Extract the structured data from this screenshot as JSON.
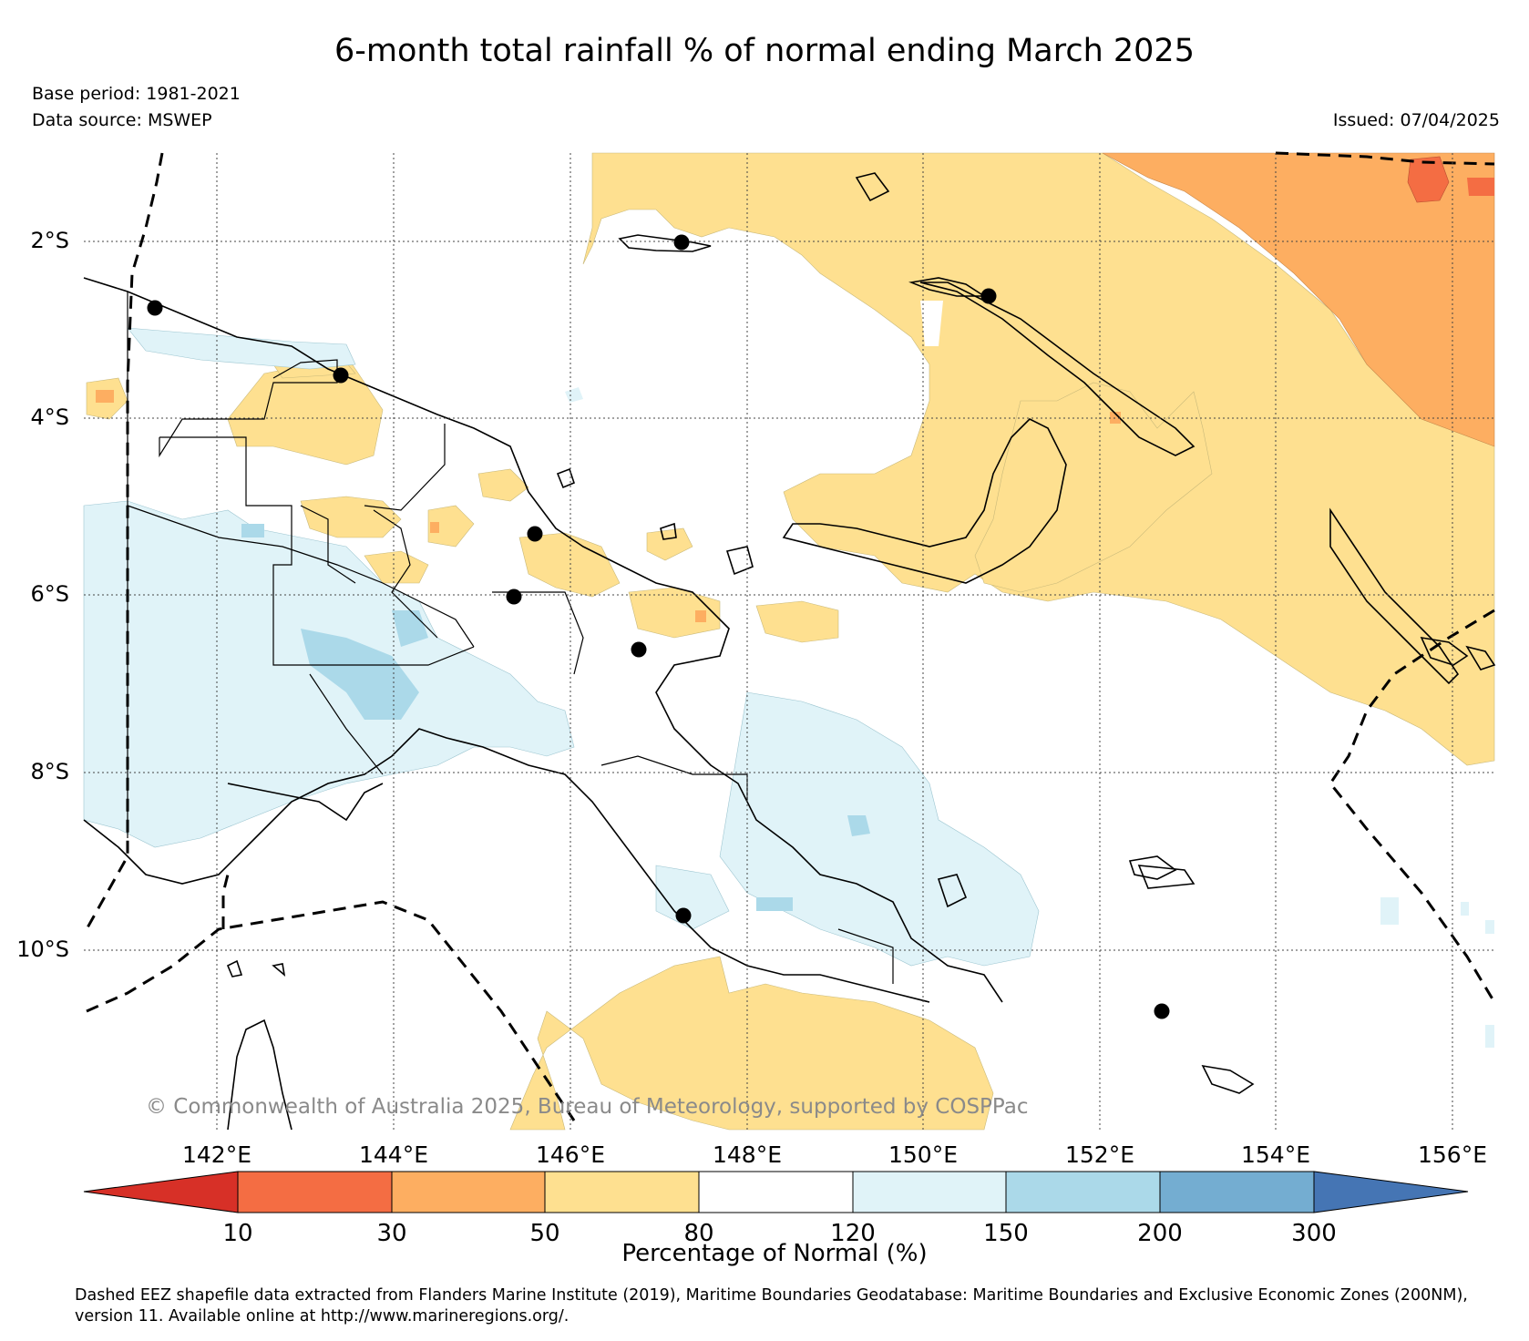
{
  "header": {
    "title": "6-month total rainfall % of normal ending March 2025",
    "base_period": "Base period: 1981-2021",
    "data_source": "Data source: MSWEP",
    "issued": "Issued: 07/04/2025"
  },
  "map": {
    "lat_labels": [
      "2°S",
      "4°S",
      "6°S",
      "8°S",
      "10°S"
    ],
    "lon_labels": [
      "142°E",
      "144°E",
      "146°E",
      "148°E",
      "150°E",
      "152°E",
      "154°E",
      "156°E"
    ],
    "copyright": "© Commonwealth of Australia 2025, Bureau of Meteorology, supported by COSPPac",
    "colors": {
      "below_10": "#d73027",
      "p10_30": "#f46d43",
      "p30_50": "#fdae61",
      "p50_80": "#fee090",
      "p80_120": "#ffffff",
      "p120_150": "#e0f3f8",
      "p150_200": "#abd9e9",
      "p200_300": "#74add1",
      "above_300": "#4575b4"
    }
  },
  "colorbar": {
    "ticks": [
      "10",
      "30",
      "50",
      "80",
      "120",
      "150",
      "200",
      "300"
    ],
    "label": "Percentage of Normal (%)"
  },
  "footnote": "Dashed EEZ shapefile data extracted from Flanders Marine Institute (2019), Maritime Boundaries Geodatabase: Maritime Boundaries and Exclusive Economic Zones (200NM), version 11. Available online at http://www.marineregions.org/."
}
